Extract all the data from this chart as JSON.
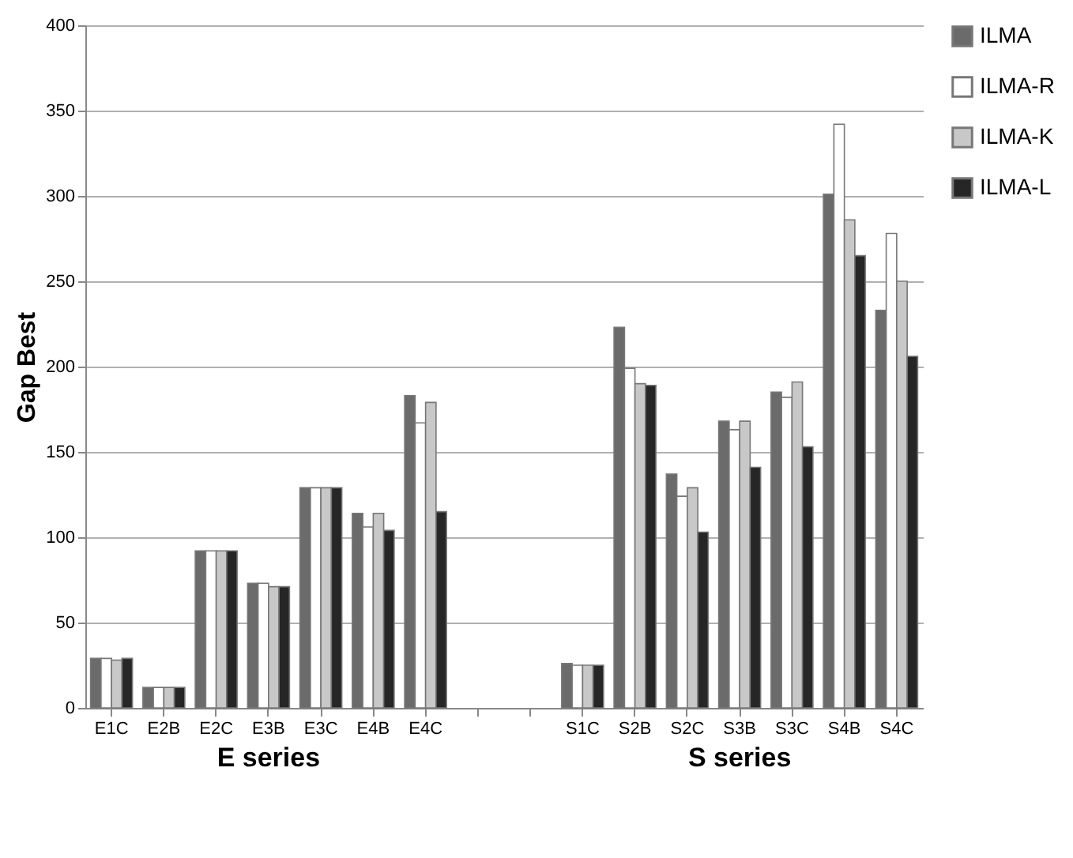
{
  "chart_data": {
    "type": "bar",
    "ylabel": "Gap Best",
    "categories": [
      "E1C",
      "E2B",
      "E2C",
      "E3B",
      "E3C",
      "E4B",
      "E4C",
      null,
      null,
      "S1C",
      "S2B",
      "S2C",
      "S3B",
      "S3C",
      "S4B",
      "S4C"
    ],
    "series": [
      {
        "name": "ILMA",
        "color": "#6b6b6b",
        "values": [
          29,
          12,
          92,
          73,
          129,
          114,
          183,
          null,
          null,
          26,
          223,
          137,
          168,
          185,
          301,
          233
        ]
      },
      {
        "name": "ILMA-R",
        "color": "#ffffff",
        "values": [
          29,
          12,
          92,
          73,
          129,
          106,
          167,
          null,
          null,
          25,
          199,
          124,
          163,
          182,
          342,
          278
        ]
      },
      {
        "name": "ILMA-K",
        "color": "#c8c8c8",
        "values": [
          28,
          12,
          92,
          71,
          129,
          114,
          179,
          null,
          null,
          25,
          190,
          129,
          168,
          191,
          286,
          250
        ]
      },
      {
        "name": "ILMA-L",
        "color": "#262626",
        "values": [
          29,
          12,
          92,
          71,
          129,
          104,
          115,
          null,
          null,
          25,
          189,
          103,
          141,
          153,
          265,
          206
        ]
      }
    ],
    "ylim": [
      0,
      400
    ],
    "yticks": [
      0,
      50,
      100,
      150,
      200,
      250,
      300,
      350,
      400
    ],
    "grid": "y",
    "legend": "right",
    "annotations": [
      "E series",
      "S series"
    ]
  }
}
